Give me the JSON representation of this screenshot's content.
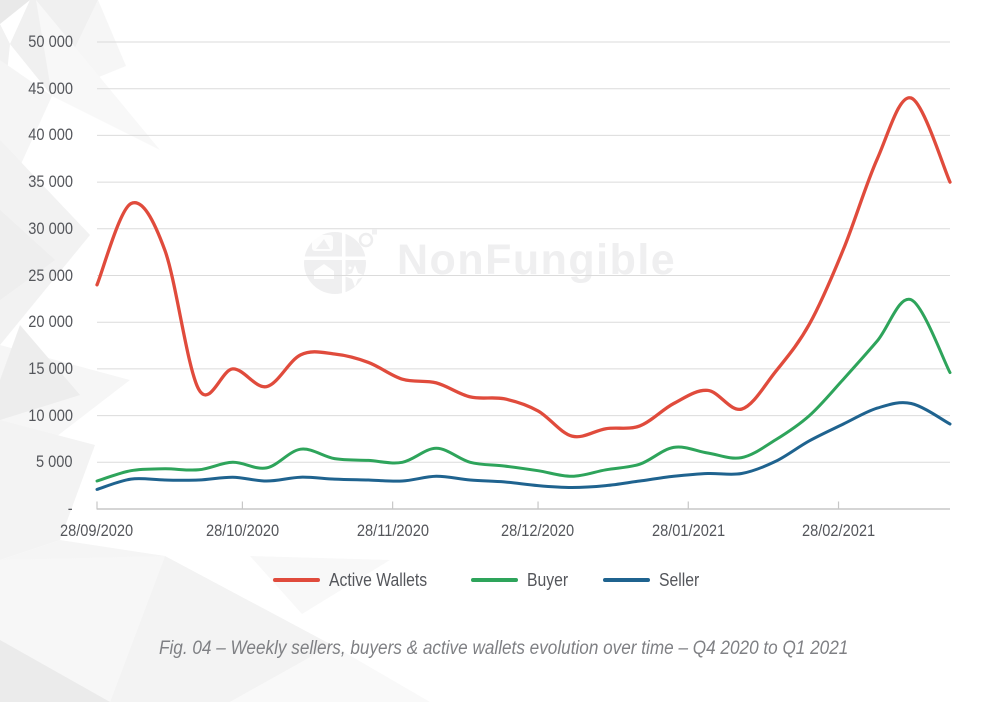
{
  "watermark": {
    "text": "NonFungible"
  },
  "caption": "Fig. 04 – Weekly sellers, buyers & active wallets evolution over time – Q4 2020 to Q1 2021",
  "colors": {
    "active_wallets": "#E04B3C",
    "buyer": "#2EA45B",
    "seller": "#1F638F",
    "gridline": "#dbdbdb",
    "axis": "#c7c7c7",
    "label_text": "#54565b",
    "caption_text": "#7f8084",
    "watermark_text": "#efeff0"
  },
  "chart_data": {
    "type": "line",
    "title": "",
    "xlabel": "",
    "ylabel": "",
    "grid": true,
    "legend_position": "bottom",
    "ylim": [
      0,
      50000
    ],
    "y_tick_values": [
      50000,
      45000,
      40000,
      35000,
      30000,
      25000,
      20000,
      15000,
      10000,
      5000,
      0
    ],
    "y_tick_labels": [
      "50 000",
      "45 000",
      "40 000",
      "35 000",
      "30 000",
      "25 000",
      "20 000",
      "15 000",
      "10 000",
      "5 000",
      "-"
    ],
    "x_range_days": [
      0,
      176
    ],
    "x_tick_days": [
      0,
      30,
      61,
      91,
      122,
      153
    ],
    "x_tick_labels": [
      "28/09/2020",
      "28/10/2020",
      "28/11/2020",
      "28/12/2020",
      "28/01/2021",
      "28/02/2021"
    ],
    "series": [
      {
        "name": "Active Wallets",
        "color": "#E04B3C",
        "points": [
          [
            0,
            24000
          ],
          [
            7,
            32700
          ],
          [
            14,
            27700
          ],
          [
            21,
            12800
          ],
          [
            28,
            15000
          ],
          [
            35,
            13100
          ],
          [
            42,
            16500
          ],
          [
            49,
            16600
          ],
          [
            56,
            15700
          ],
          [
            63,
            13900
          ],
          [
            70,
            13500
          ],
          [
            77,
            12000
          ],
          [
            84,
            11800
          ],
          [
            91,
            10500
          ],
          [
            98,
            7800
          ],
          [
            105,
            8600
          ],
          [
            112,
            8900
          ],
          [
            119,
            11300
          ],
          [
            126,
            12700
          ],
          [
            133,
            10700
          ],
          [
            140,
            14700
          ],
          [
            147,
            19800
          ],
          [
            154,
            27800
          ],
          [
            161,
            37500
          ],
          [
            168,
            44000
          ],
          [
            176,
            35000
          ]
        ]
      },
      {
        "name": "Buyer",
        "color": "#2EA45B",
        "points": [
          [
            0,
            3000
          ],
          [
            7,
            4100
          ],
          [
            14,
            4300
          ],
          [
            21,
            4200
          ],
          [
            28,
            5000
          ],
          [
            35,
            4400
          ],
          [
            42,
            6400
          ],
          [
            49,
            5400
          ],
          [
            56,
            5200
          ],
          [
            63,
            5000
          ],
          [
            70,
            6500
          ],
          [
            77,
            5000
          ],
          [
            84,
            4600
          ],
          [
            91,
            4100
          ],
          [
            98,
            3500
          ],
          [
            105,
            4200
          ],
          [
            112,
            4800
          ],
          [
            119,
            6600
          ],
          [
            126,
            6000
          ],
          [
            133,
            5500
          ],
          [
            140,
            7400
          ],
          [
            147,
            10000
          ],
          [
            154,
            13900
          ],
          [
            161,
            18000
          ],
          [
            168,
            22400
          ],
          [
            176,
            14600
          ]
        ]
      },
      {
        "name": "Seller",
        "color": "#1F638F",
        "points": [
          [
            0,
            2100
          ],
          [
            7,
            3200
          ],
          [
            14,
            3100
          ],
          [
            21,
            3100
          ],
          [
            28,
            3400
          ],
          [
            35,
            3000
          ],
          [
            42,
            3400
          ],
          [
            49,
            3200
          ],
          [
            56,
            3100
          ],
          [
            63,
            3000
          ],
          [
            70,
            3500
          ],
          [
            77,
            3100
          ],
          [
            84,
            2900
          ],
          [
            91,
            2500
          ],
          [
            98,
            2300
          ],
          [
            105,
            2500
          ],
          [
            112,
            3000
          ],
          [
            119,
            3500
          ],
          [
            126,
            3800
          ],
          [
            133,
            3800
          ],
          [
            140,
            5100
          ],
          [
            147,
            7300
          ],
          [
            154,
            9100
          ],
          [
            161,
            10800
          ],
          [
            168,
            11300
          ],
          [
            176,
            9100
          ]
        ]
      }
    ]
  }
}
